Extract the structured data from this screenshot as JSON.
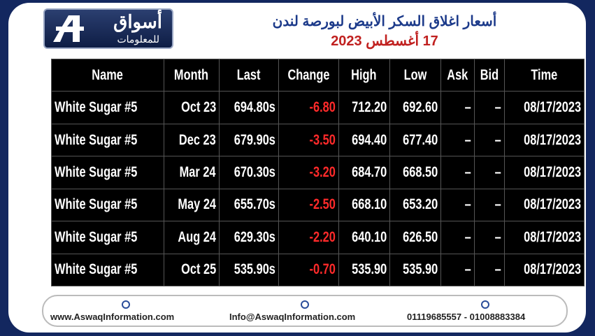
{
  "logo": {
    "name": "أسواق",
    "subtitle": "للمعلومات"
  },
  "header": {
    "title": "أسعار اغلاق السكر الأبيض لبورصة لندن",
    "date": "17 أغسطس 2023"
  },
  "table": {
    "columns": [
      "Name",
      "Month",
      "Last",
      "Change",
      "High",
      "Low",
      "Ask",
      "Bid",
      "Time"
    ],
    "rows": [
      [
        "White Sugar #5",
        "Oct 23",
        "694.80s",
        "-6.80",
        "712.20",
        "692.60",
        "–",
        "–",
        "08/17/2023"
      ],
      [
        "White Sugar #5",
        "Dec 23",
        "679.90s",
        "-3.50",
        "694.40",
        "677.40",
        "–",
        "–",
        "08/17/2023"
      ],
      [
        "White Sugar #5",
        "Mar 24",
        "670.30s",
        "-3.20",
        "684.70",
        "668.50",
        "–",
        "–",
        "08/17/2023"
      ],
      [
        "White Sugar #5",
        "May 24",
        "655.70s",
        "-2.50",
        "668.10",
        "653.20",
        "–",
        "–",
        "08/17/2023"
      ],
      [
        "White Sugar #5",
        "Aug 24",
        "629.30s",
        "-2.20",
        "640.10",
        "626.50",
        "–",
        "–",
        "08/17/2023"
      ],
      [
        "White Sugar #5",
        "Oct 25",
        "535.90s",
        "-0.70",
        "535.90",
        "535.90",
        "–",
        "–",
        "08/17/2023"
      ]
    ]
  },
  "footer": {
    "website": "www.AswaqInformation.com",
    "email": "Info@AswaqInformation.com",
    "phones": "01119685557 - 01008883384"
  }
}
